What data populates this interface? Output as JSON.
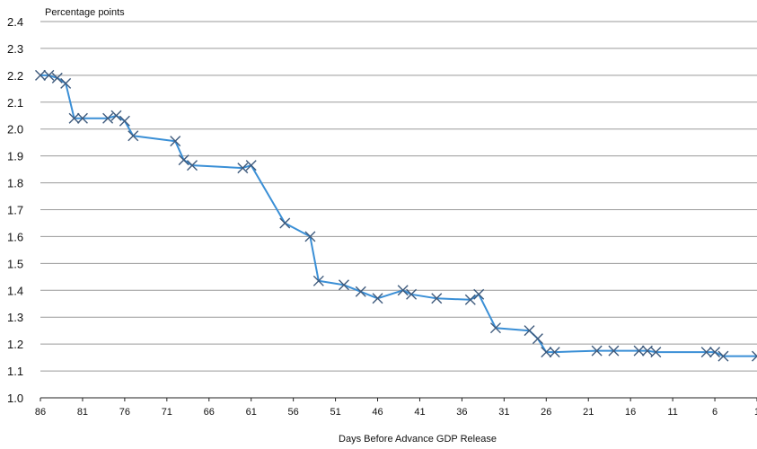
{
  "chart_data": {
    "type": "line",
    "title": "",
    "ylabel": "Percentage points",
    "xlabel": "Days Before Advance GDP Release",
    "xlim": [
      86,
      1
    ],
    "x_reversed": true,
    "ylim": [
      1.0,
      2.4
    ],
    "yticks": [
      "1.0",
      "1.1",
      "1.2",
      "1.3",
      "1.4",
      "1.5",
      "1.6",
      "1.7",
      "1.8",
      "1.9",
      "2.0",
      "2.1",
      "2.2",
      "2.3",
      "2.4"
    ],
    "xticks": [
      "86",
      "81",
      "76",
      "71",
      "66",
      "61",
      "56",
      "51",
      "46",
      "41",
      "36",
      "31",
      "26",
      "21",
      "16",
      "11",
      "6",
      "1"
    ],
    "grid": true,
    "marker": "x",
    "line_color": "#3a8fd6",
    "marker_color": "#3e5a7c",
    "series": [
      {
        "x": [
          86,
          85,
          84,
          83,
          82,
          81,
          78,
          77,
          76,
          75,
          70,
          69,
          68,
          62,
          61,
          57,
          54,
          53,
          50,
          48,
          46,
          43,
          42,
          39,
          35,
          34,
          32,
          28,
          27,
          26,
          25,
          20,
          18,
          15,
          14,
          13,
          7,
          6,
          5,
          1
        ],
        "y": [
          2.2,
          2.2,
          2.19,
          2.17,
          2.04,
          2.04,
          2.04,
          2.05,
          2.03,
          1.975,
          1.955,
          1.885,
          1.865,
          1.855,
          1.865,
          1.65,
          1.6,
          1.435,
          1.42,
          1.395,
          1.37,
          1.4,
          1.385,
          1.37,
          1.365,
          1.385,
          1.26,
          1.25,
          1.22,
          1.17,
          1.17,
          1.175,
          1.175,
          1.175,
          1.175,
          1.17,
          1.17,
          1.17,
          1.155,
          1.155
        ]
      }
    ]
  }
}
